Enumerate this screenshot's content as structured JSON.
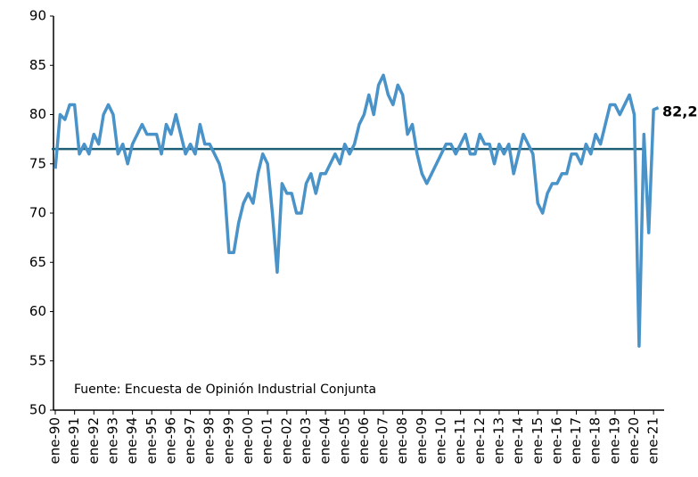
{
  "chart_data": {
    "type": "line",
    "annotations": [
      "82,2",
      "Fuente: Encuesta de Opinión Industrial Conjunta"
    ],
    "categories": [
      "ene-90",
      null,
      null,
      null,
      "ene-91",
      null,
      null,
      null,
      "ene-92",
      null,
      null,
      null,
      "ene-93",
      null,
      null,
      null,
      "ene-94",
      null,
      null,
      null,
      "ene-95",
      null,
      null,
      null,
      "ene-96",
      null,
      null,
      null,
      "ene-97",
      null,
      null,
      null,
      "ene-98",
      null,
      null,
      null,
      "ene-99",
      null,
      null,
      null,
      "ene-00",
      null,
      null,
      null,
      "ene-01",
      null,
      null,
      null,
      "ene-02",
      null,
      null,
      null,
      "ene-03",
      null,
      null,
      null,
      "ene-04",
      null,
      null,
      null,
      "ene-05",
      null,
      null,
      null,
      "ene-06",
      null,
      null,
      null,
      "ene-07",
      null,
      null,
      null,
      "ene-08",
      null,
      null,
      null,
      "ene-09",
      null,
      null,
      null,
      "ene-10",
      null,
      null,
      null,
      "ene-11",
      null,
      null,
      null,
      "ene-12",
      null,
      null,
      null,
      "ene-13",
      null,
      null,
      null,
      "ene-14",
      null,
      null,
      null,
      "ene-15",
      null,
      null,
      null,
      "ene-16",
      null,
      null,
      null,
      "ene-17",
      null,
      null,
      null,
      "ene-18",
      null,
      null,
      null,
      "ene-19",
      null,
      null,
      null,
      "ene-20",
      null,
      null,
      null,
      "ene-21",
      null
    ],
    "series": [
      {
        "color": "#4a93c9",
        "values": [
          74.5,
          80,
          79.5,
          81,
          81,
          76,
          77,
          76,
          78,
          77,
          80,
          81,
          80,
          76,
          77,
          75,
          77,
          78,
          79,
          78,
          78,
          78,
          76,
          79,
          78,
          80,
          78,
          76,
          77,
          76,
          79,
          77,
          77,
          76,
          75,
          73,
          66,
          66,
          69,
          71,
          72,
          71,
          74,
          76,
          75,
          70,
          64,
          73,
          72,
          72,
          70,
          70,
          73,
          74,
          72,
          74,
          74,
          75,
          76,
          75,
          77,
          76,
          77,
          79,
          80,
          82,
          80,
          83,
          84,
          82,
          81,
          83,
          82,
          78,
          79,
          76,
          74,
          73,
          74,
          75,
          76,
          77,
          77,
          76,
          77,
          78,
          76,
          76,
          78,
          77,
          77,
          75,
          77,
          76,
          77,
          74,
          76,
          78,
          77,
          76,
          71,
          70,
          72,
          73,
          73,
          74,
          74,
          76,
          76,
          75,
          77,
          76,
          78,
          77,
          79,
          81,
          81,
          80,
          81,
          82,
          80,
          56.5,
          78,
          68,
          80.5,
          80.7
        ]
      }
    ],
    "average_line": {
      "value": 76.5,
      "color": "#1e5f78"
    },
    "ylim": [
      50,
      90
    ],
    "yticks": [
      50,
      55,
      60,
      65,
      70,
      75,
      80,
      85,
      90
    ],
    "grid": false
  }
}
